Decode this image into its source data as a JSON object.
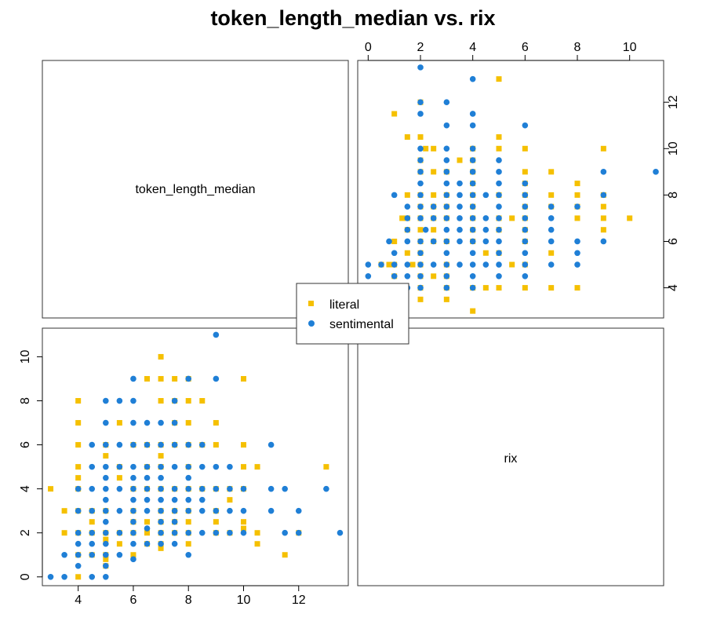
{
  "chart_data": {
    "type": "scatter",
    "title": "token_length_median vs. rix",
    "variables": [
      "token_length_median",
      "rix"
    ],
    "legend": {
      "placement": "center",
      "entries": [
        {
          "name": "literal",
          "color": "#f5c000",
          "shape": "square"
        },
        {
          "name": "sentimental",
          "color": "#1f7fd6",
          "shape": "circle"
        }
      ]
    },
    "axes": {
      "token_length_median": {
        "ticks": [
          4,
          6,
          8,
          10,
          12
        ],
        "range": [
          2.7,
          13.8
        ]
      },
      "rix": {
        "ticks": [
          0,
          2,
          4,
          6,
          8,
          10
        ],
        "range": [
          -0.4,
          11.3
        ]
      }
    },
    "series": [
      {
        "name": "literal",
        "color": "#f5c000",
        "points": [
          [
            3,
            4
          ],
          [
            3.5,
            2
          ],
          [
            3.5,
            3
          ],
          [
            4,
            8
          ],
          [
            4,
            7
          ],
          [
            4,
            6
          ],
          [
            4,
            5
          ],
          [
            4,
            4.5
          ],
          [
            4,
            4
          ],
          [
            4,
            3
          ],
          [
            4,
            2
          ],
          [
            4,
            1
          ],
          [
            4,
            0
          ],
          [
            4.5,
            3
          ],
          [
            4.5,
            2.5
          ],
          [
            4.5,
            2
          ],
          [
            4.5,
            1
          ],
          [
            5,
            3
          ],
          [
            5,
            2
          ],
          [
            5,
            1.7
          ],
          [
            5,
            1
          ],
          [
            5,
            0.8
          ],
          [
            5,
            0.5
          ],
          [
            5,
            5.5
          ],
          [
            5,
            6
          ],
          [
            5.5,
            7
          ],
          [
            5.5,
            5
          ],
          [
            5.5,
            4.5
          ],
          [
            5.5,
            2
          ],
          [
            5.5,
            1.5
          ],
          [
            6,
            6
          ],
          [
            6,
            4
          ],
          [
            6,
            3
          ],
          [
            6,
            2.5
          ],
          [
            6,
            2
          ],
          [
            6,
            1
          ],
          [
            6.5,
            9
          ],
          [
            6.5,
            6
          ],
          [
            6.5,
            5
          ],
          [
            6.5,
            4
          ],
          [
            6.5,
            2.5
          ],
          [
            6.5,
            2
          ],
          [
            6.5,
            1.5
          ],
          [
            7,
            10
          ],
          [
            7,
            9
          ],
          [
            7,
            8
          ],
          [
            7,
            6
          ],
          [
            7,
            5.5
          ],
          [
            7,
            5
          ],
          [
            7,
            4
          ],
          [
            7,
            3
          ],
          [
            7,
            2.5
          ],
          [
            7,
            2
          ],
          [
            7,
            1.5
          ],
          [
            7,
            1.3
          ],
          [
            7.5,
            9
          ],
          [
            7.5,
            8
          ],
          [
            7.5,
            7
          ],
          [
            7.5,
            6
          ],
          [
            7.5,
            4
          ],
          [
            7.5,
            3
          ],
          [
            7.5,
            2.5
          ],
          [
            7.5,
            2
          ],
          [
            8,
            9
          ],
          [
            8,
            8
          ],
          [
            8,
            7
          ],
          [
            8,
            6
          ],
          [
            8,
            5
          ],
          [
            8,
            4
          ],
          [
            8,
            3
          ],
          [
            8,
            2.5
          ],
          [
            8,
            2
          ],
          [
            8,
            1.5
          ],
          [
            8.5,
            8
          ],
          [
            8.5,
            6
          ],
          [
            8.5,
            4
          ],
          [
            9,
            7
          ],
          [
            9,
            6
          ],
          [
            9,
            4
          ],
          [
            9,
            3
          ],
          [
            9,
            2.5
          ],
          [
            9,
            2
          ],
          [
            9.5,
            4
          ],
          [
            9.5,
            3.5
          ],
          [
            9.5,
            2
          ],
          [
            10,
            9
          ],
          [
            10,
            6
          ],
          [
            10,
            5
          ],
          [
            10,
            4
          ],
          [
            10,
            2.5
          ],
          [
            10,
            2.2
          ],
          [
            10.5,
            5
          ],
          [
            10.5,
            2
          ],
          [
            10.5,
            1.5
          ],
          [
            11.5,
            1
          ],
          [
            12,
            2
          ],
          [
            13,
            5
          ]
        ]
      },
      {
        "name": "sentimental",
        "color": "#1f7fd6",
        "points": [
          [
            3,
            0
          ],
          [
            3.5,
            0
          ],
          [
            3.5,
            1
          ],
          [
            4,
            0.5
          ],
          [
            4,
            1
          ],
          [
            4,
            1.5
          ],
          [
            4,
            2
          ],
          [
            4,
            3
          ],
          [
            4,
            4
          ],
          [
            4.5,
            0
          ],
          [
            4.5,
            1
          ],
          [
            4.5,
            1.5
          ],
          [
            4.5,
            2
          ],
          [
            4.5,
            3
          ],
          [
            4.5,
            4
          ],
          [
            4.5,
            5
          ],
          [
            4.5,
            6
          ],
          [
            5,
            0
          ],
          [
            5,
            0.5
          ],
          [
            5,
            1
          ],
          [
            5,
            1.5
          ],
          [
            5,
            2
          ],
          [
            5,
            2.5
          ],
          [
            5,
            3
          ],
          [
            5,
            3.5
          ],
          [
            5,
            4
          ],
          [
            5,
            4.5
          ],
          [
            5,
            5
          ],
          [
            5,
            6
          ],
          [
            5,
            7
          ],
          [
            5,
            8
          ],
          [
            5.5,
            1
          ],
          [
            5.5,
            2
          ],
          [
            5.5,
            3
          ],
          [
            5.5,
            4
          ],
          [
            5.5,
            5
          ],
          [
            5.5,
            6
          ],
          [
            5.5,
            8
          ],
          [
            6,
            0.8
          ],
          [
            6,
            1.5
          ],
          [
            6,
            2
          ],
          [
            6,
            2.5
          ],
          [
            6,
            3
          ],
          [
            6,
            3.5
          ],
          [
            6,
            4
          ],
          [
            6,
            4.5
          ],
          [
            6,
            5
          ],
          [
            6,
            6
          ],
          [
            6,
            7
          ],
          [
            6,
            8
          ],
          [
            6,
            9
          ],
          [
            6.5,
            1.5
          ],
          [
            6.5,
            2.2
          ],
          [
            6.5,
            3
          ],
          [
            6.5,
            3.5
          ],
          [
            6.5,
            4
          ],
          [
            6.5,
            4.5
          ],
          [
            6.5,
            5
          ],
          [
            6.5,
            6
          ],
          [
            6.5,
            7
          ],
          [
            7,
            1.5
          ],
          [
            7,
            2
          ],
          [
            7,
            2.5
          ],
          [
            7,
            3
          ],
          [
            7,
            3.5
          ],
          [
            7,
            4
          ],
          [
            7,
            4.5
          ],
          [
            7,
            5
          ],
          [
            7,
            6
          ],
          [
            7,
            7
          ],
          [
            7.5,
            1.5
          ],
          [
            7.5,
            2
          ],
          [
            7.5,
            2.5
          ],
          [
            7.5,
            3
          ],
          [
            7.5,
            3.5
          ],
          [
            7.5,
            4
          ],
          [
            7.5,
            5
          ],
          [
            7.5,
            6
          ],
          [
            7.5,
            7
          ],
          [
            7.5,
            8
          ],
          [
            8,
            1
          ],
          [
            8,
            2
          ],
          [
            8,
            3
          ],
          [
            8,
            3.5
          ],
          [
            8,
            4
          ],
          [
            8,
            4.5
          ],
          [
            8,
            5
          ],
          [
            8,
            6
          ],
          [
            8,
            9
          ],
          [
            8.5,
            2
          ],
          [
            8.5,
            3
          ],
          [
            8.5,
            3.5
          ],
          [
            8.5,
            4
          ],
          [
            8.5,
            5
          ],
          [
            8.5,
            6
          ],
          [
            9,
            2
          ],
          [
            9,
            3
          ],
          [
            9,
            4
          ],
          [
            9,
            5
          ],
          [
            9,
            9
          ],
          [
            9,
            11
          ],
          [
            9.5,
            2
          ],
          [
            9.5,
            3
          ],
          [
            9.5,
            4
          ],
          [
            9.5,
            5
          ],
          [
            10,
            2
          ],
          [
            10,
            3
          ],
          [
            10,
            4
          ],
          [
            11,
            3
          ],
          [
            11,
            4
          ],
          [
            11,
            6
          ],
          [
            11.5,
            2
          ],
          [
            11.5,
            4
          ],
          [
            12,
            2
          ],
          [
            12,
            3
          ],
          [
            13,
            4
          ],
          [
            13.5,
            2
          ]
        ]
      }
    ],
    "diagonal_labels": [
      "token_length_median",
      "rix"
    ]
  }
}
